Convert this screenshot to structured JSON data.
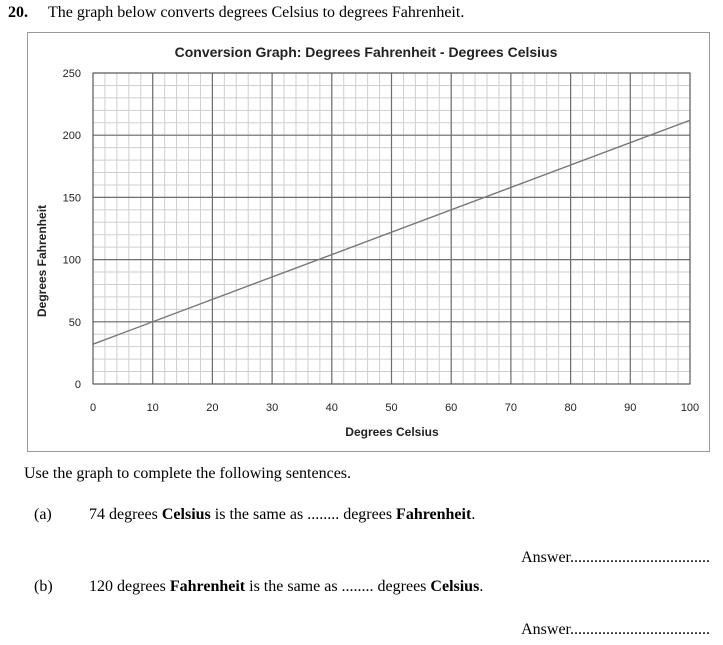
{
  "question": {
    "number": "20.",
    "prompt": "The graph below converts degrees Celsius to degrees Fahrenheit."
  },
  "chart_data": {
    "type": "line",
    "title": "Conversion Graph: Degrees Fahrenheit - Degrees Celsius",
    "xlabel": "Degrees Celsius",
    "ylabel": "Degrees Fahrenheit",
    "xlim": [
      0,
      100
    ],
    "ylim": [
      0,
      250
    ],
    "x_ticks": [
      "0",
      "10",
      "20",
      "30",
      "40",
      "50",
      "60",
      "70",
      "80",
      "90",
      "100"
    ],
    "y_ticks": [
      "0",
      "50",
      "100",
      "150",
      "200",
      "250"
    ],
    "grid": true,
    "series": [
      {
        "x": [
          0,
          100
        ],
        "y": [
          32,
          212
        ],
        "color": "#777777"
      }
    ]
  },
  "instruction": "Use the graph to complete the following sentences.",
  "parts": [
    {
      "label": "(a)",
      "pre": "74 degrees ",
      "bold1": "Celsius",
      "mid": " is the same as ........ degrees ",
      "bold2": "Fahrenheit",
      "post": ".",
      "answer": "Answer..................................."
    },
    {
      "label": "(b)",
      "pre": "120 degrees ",
      "bold1": "Fahrenheit",
      "mid": " is the same as ........ degrees ",
      "bold2": "Celsius",
      "post": ".",
      "answer": "Answer..................................."
    }
  ]
}
